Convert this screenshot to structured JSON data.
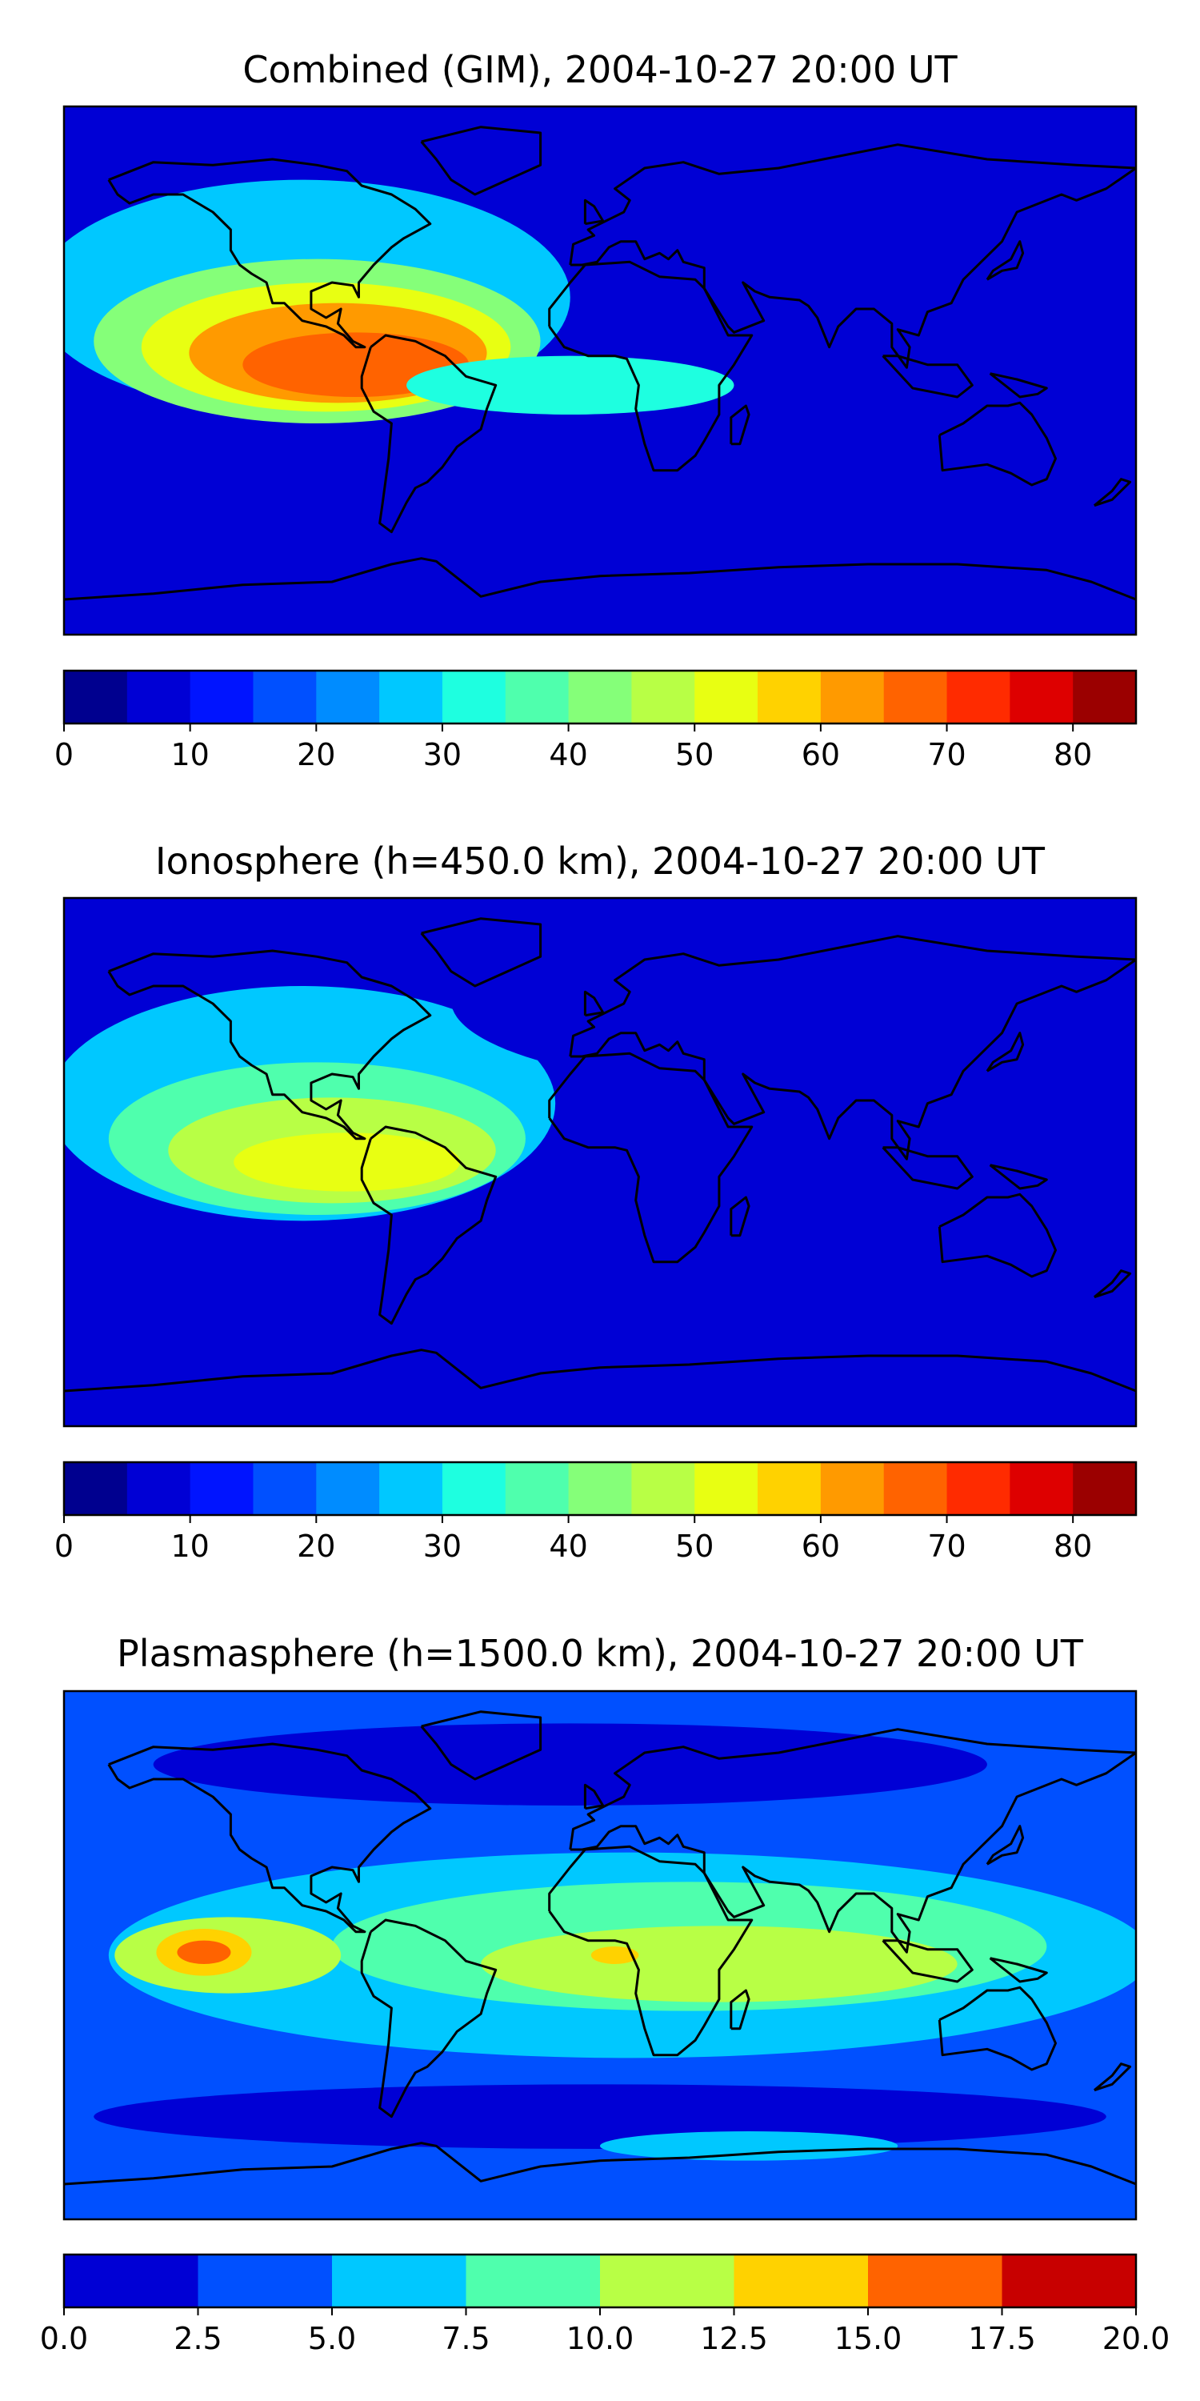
{
  "chart_data": [
    {
      "type": "heatmap",
      "title": "Combined (GIM), 2004-10-27 20:00 UT",
      "colorbar": {
        "ticks": [
          "0",
          "10",
          "20",
          "30",
          "40",
          "50",
          "60",
          "70",
          "80"
        ],
        "tick_values": [
          0,
          10,
          20,
          30,
          40,
          50,
          60,
          70,
          80
        ],
        "range": [
          0,
          85
        ],
        "levels": [
          0,
          5,
          10,
          15,
          20,
          25,
          30,
          35,
          40,
          45,
          50,
          55,
          60,
          65,
          70,
          75,
          80,
          85
        ],
        "colors": [
          "#00008f",
          "#0000d5",
          "#0014ff",
          "#0050ff",
          "#008cff",
          "#00c8ff",
          "#1effe0",
          "#4fffad",
          "#85ff79",
          "#b8ff45",
          "#e8ff12",
          "#ffd200",
          "#ff9a00",
          "#ff6300",
          "#ff2b00",
          "#de0000",
          "#9b0000"
        ]
      },
      "regions": [
        {
          "name": "low-pacific-high",
          "level": 25,
          "lon": -100,
          "lat": 25,
          "rlon": 90,
          "rlat": 40
        },
        {
          "name": "pacific-anomaly-1",
          "level": 40,
          "lon": -95,
          "lat": 10,
          "rlon": 75,
          "rlat": 28
        },
        {
          "name": "pacific-anomaly-2",
          "level": 50,
          "lon": -92,
          "lat": 8,
          "rlon": 62,
          "rlat": 22
        },
        {
          "name": "pacific-anomaly-3",
          "level": 60,
          "lon": -88,
          "lat": 6,
          "rlon": 50,
          "rlat": 17
        },
        {
          "name": "pacific-anomaly-4",
          "level": 65,
          "lon": -82,
          "lat": 2,
          "rlon": 38,
          "rlat": 11
        },
        {
          "name": "north-polar-low",
          "level": 5,
          "lon": 40,
          "lat": 70,
          "rlon": 110,
          "rlat": 18
        },
        {
          "name": "atlantic-band",
          "level": 30,
          "lon": -10,
          "lat": -5,
          "rlon": 55,
          "rlat": 10
        },
        {
          "name": "southern-ocean-low",
          "level": 5,
          "lon": 110,
          "lat": -42,
          "rlon": 55,
          "rlat": 8
        }
      ]
    },
    {
      "type": "heatmap",
      "title": "Ionosphere  (h=450.0 km), 2004-10-27 20:00 UT",
      "colorbar": {
        "ticks": [
          "0",
          "10",
          "20",
          "30",
          "40",
          "50",
          "60",
          "70",
          "80"
        ],
        "tick_values": [
          0,
          10,
          20,
          30,
          40,
          50,
          60,
          70,
          80
        ],
        "range": [
          0,
          85
        ],
        "levels": [
          0,
          5,
          10,
          15,
          20,
          25,
          30,
          35,
          40,
          45,
          50,
          55,
          60,
          65,
          70,
          75,
          80,
          85
        ],
        "colors": [
          "#00008f",
          "#0000d5",
          "#0014ff",
          "#0050ff",
          "#008cff",
          "#00c8ff",
          "#1effe0",
          "#4fffad",
          "#85ff79",
          "#b8ff45",
          "#e8ff12",
          "#ffd200",
          "#ff9a00",
          "#ff6300",
          "#ff2b00",
          "#de0000",
          "#9b0000"
        ]
      },
      "regions": [
        {
          "name": "low-pacific-high",
          "level": 25,
          "lon": -100,
          "lat": 20,
          "rlon": 85,
          "rlat": 40
        },
        {
          "name": "pacific-anomaly-1",
          "level": 35,
          "lon": -95,
          "lat": 8,
          "rlon": 70,
          "rlat": 26
        },
        {
          "name": "pacific-anomaly-2",
          "level": 45,
          "lon": -90,
          "lat": 4,
          "rlon": 55,
          "rlat": 18
        },
        {
          "name": "pacific-anomaly-3",
          "level": 50,
          "lon": -85,
          "lat": 0,
          "rlon": 38,
          "rlat": 10
        },
        {
          "name": "north-polar-low",
          "level": 5,
          "lon": 60,
          "lat": 55,
          "rlon": 110,
          "rlat": 30
        },
        {
          "name": "southern-ocean-low",
          "level": 5,
          "lon": 80,
          "lat": -45,
          "rlon": 90,
          "rlat": 12
        }
      ]
    },
    {
      "type": "heatmap",
      "title": "Plasmasphere (h=1500.0 km), 2004-10-27 20:00 UT",
      "colorbar": {
        "ticks": [
          "0.0",
          "2.5",
          "5.0",
          "7.5",
          "10.0",
          "12.5",
          "15.0",
          "17.5",
          "20.0"
        ],
        "tick_values": [
          0,
          2.5,
          5,
          7.5,
          10,
          12.5,
          15,
          17.5,
          20
        ],
        "range": [
          0,
          20
        ],
        "levels": [
          0,
          2.5,
          5,
          7.5,
          10,
          12.5,
          15,
          17.5,
          20
        ],
        "colors": [
          "#0000d5",
          "#0050ff",
          "#00c8ff",
          "#4fffad",
          "#b8ff45",
          "#ffd200",
          "#ff6300",
          "#c80000"
        ]
      },
      "regions": [
        {
          "name": "tropical-band",
          "level": 5,
          "lon": 10,
          "lat": 0,
          "rlon": 175,
          "rlat": 35
        },
        {
          "name": "tropical-core",
          "level": 7.5,
          "lon": 30,
          "lat": 3,
          "rlon": 120,
          "rlat": 22
        },
        {
          "name": "africa-indian-high",
          "level": 10,
          "lon": 40,
          "lat": -3,
          "rlon": 80,
          "rlat": 13
        },
        {
          "name": "pacific-high",
          "level": 10,
          "lon": -125,
          "lat": 0,
          "rlon": 38,
          "rlat": 13
        },
        {
          "name": "pacific-high-2",
          "level": 12.5,
          "lon": -133,
          "lat": 1,
          "rlon": 16,
          "rlat": 8
        },
        {
          "name": "pacific-high-3",
          "level": 15,
          "lon": -133,
          "lat": 1,
          "rlon": 9,
          "rlat": 4
        },
        {
          "name": "africa-spot",
          "level": 12.5,
          "lon": 5,
          "lat": 0,
          "rlon": 8,
          "rlat": 3
        },
        {
          "name": "north-polar-low",
          "level": 0,
          "lon": -10,
          "lat": 65,
          "rlon": 140,
          "rlat": 14
        },
        {
          "name": "south-polar-low",
          "level": 0,
          "lon": 0,
          "lat": -55,
          "rlon": 170,
          "rlat": 11
        },
        {
          "name": "southern-ocean-band",
          "level": 5,
          "lon": 50,
          "lat": -65,
          "rlon": 50,
          "rlat": 5
        }
      ]
    }
  ]
}
